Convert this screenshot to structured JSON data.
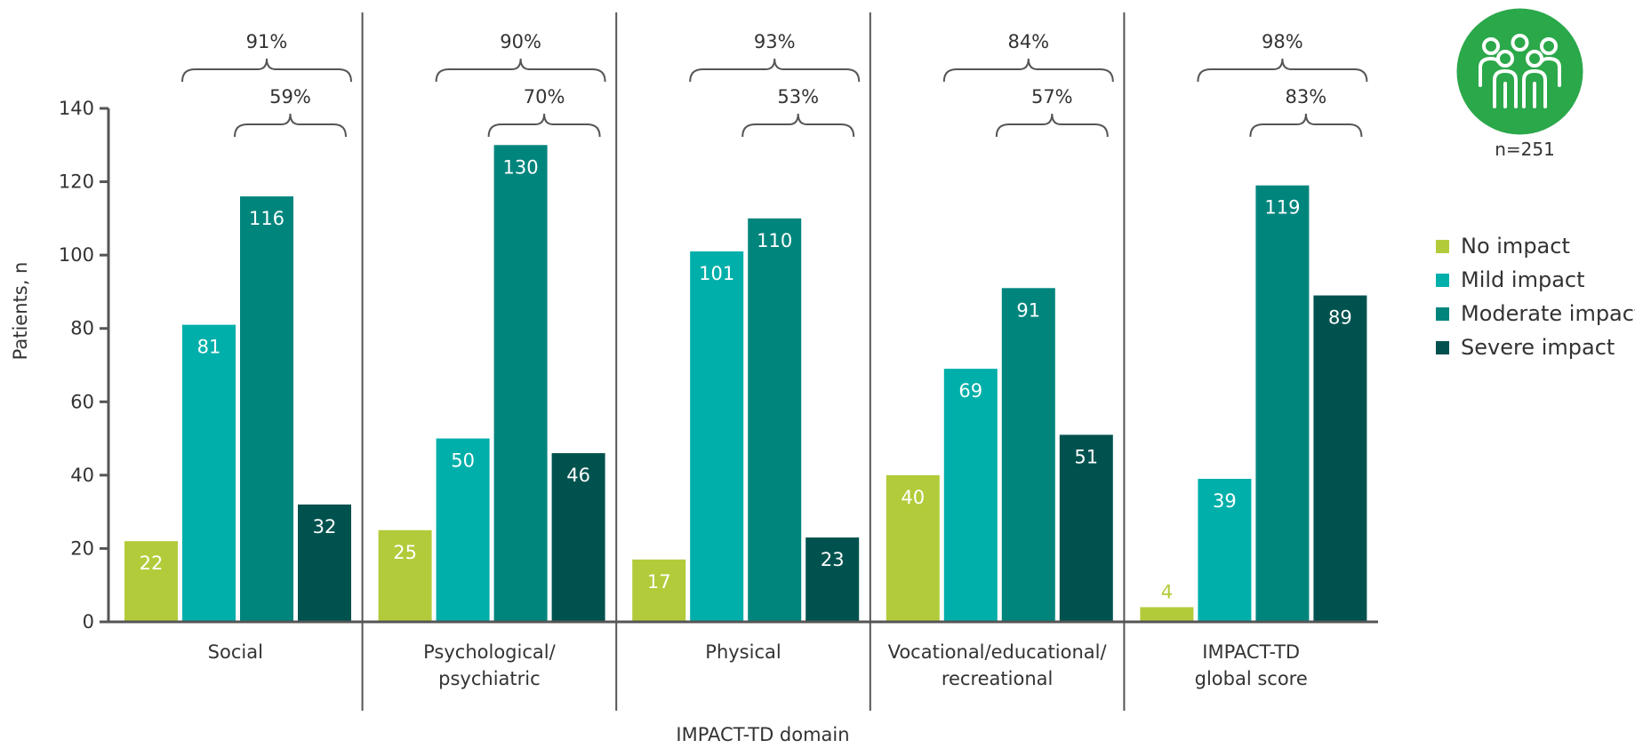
{
  "chart_data": {
    "type": "bar",
    "title": "",
    "xlabel": "IMPACT-TD domain",
    "ylabel": "Patients, n",
    "ylim": [
      0,
      140
    ],
    "yticks": [
      "0",
      "20",
      "40",
      "60",
      "80",
      "100",
      "120",
      "140"
    ],
    "grid": false,
    "legend_position": "right",
    "categories": [
      [
        "Social"
      ],
      [
        "Psychological/",
        "psychiatric"
      ],
      [
        "Physical"
      ],
      [
        "Vocational/educational/",
        "recreational"
      ],
      [
        "IMPACT-TD",
        "global score"
      ]
    ],
    "series": [
      {
        "name": "No impact",
        "color": "#B2CB3A",
        "label_color": "#FFFFFF",
        "values": [
          22,
          25,
          17,
          40,
          4
        ]
      },
      {
        "name": "Mild impact",
        "color": "#00AFAA",
        "label_color": "#FFFFFF",
        "values": [
          81,
          50,
          101,
          69,
          39
        ]
      },
      {
        "name": "Moderate impact",
        "color": "#00857D",
        "label_color": "#FFFFFF",
        "values": [
          116,
          130,
          110,
          91,
          119
        ]
      },
      {
        "name": "Severe impact",
        "color": "#00524F",
        "label_color": "#FFFFFF",
        "values": [
          32,
          46,
          23,
          51,
          89
        ]
      }
    ],
    "annotations": {
      "any_impact_pct": [
        "91%",
        "90%",
        "93%",
        "84%",
        "98%"
      ],
      "moderate_severe_pct": [
        "59%",
        "70%",
        "53%",
        "57%",
        "83%"
      ]
    }
  },
  "sample": {
    "label": "n=251",
    "icon": "people-group-icon",
    "icon_color": "#2BA84A"
  }
}
